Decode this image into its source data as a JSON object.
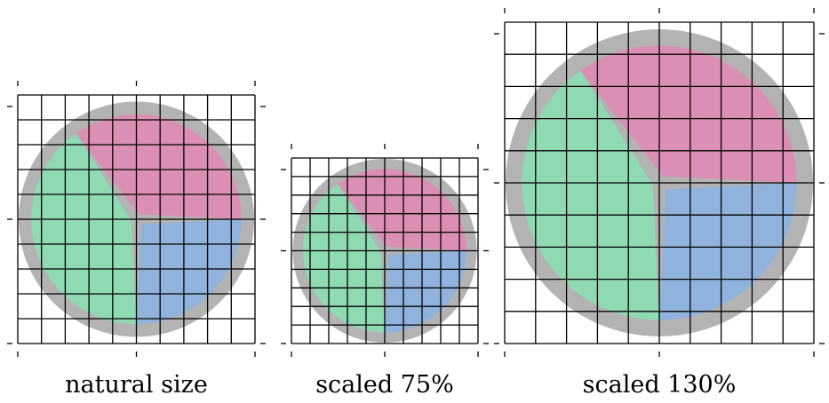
{
  "colors": {
    "pink": "#db8fb5",
    "blue": "#8fb3dc",
    "green": "#8fd9b3",
    "ring": "#b3b3b3",
    "grid": "#000000"
  },
  "grid_divisions": 10,
  "slices": [
    {
      "name": "pink",
      "color": "pink"
    },
    {
      "name": "blue",
      "color": "blue"
    },
    {
      "name": "green",
      "color": "green"
    }
  ],
  "panels": [
    {
      "name": "natural",
      "caption": "natural size",
      "scale_percent": 100
    },
    {
      "name": "scaled-75",
      "caption": "scaled 75%",
      "scale_percent": 75
    },
    {
      "name": "scaled-130",
      "caption": "scaled 130%",
      "scale_percent": 130
    }
  ]
}
